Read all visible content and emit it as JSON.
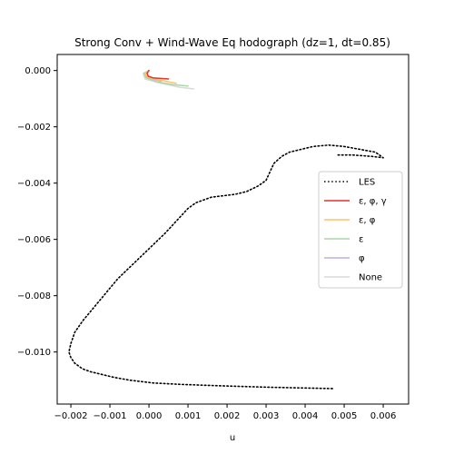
{
  "chart_data": {
    "type": "line",
    "title": "Strong Conv + Wind-Wave Eq hodograph (dz=1, dt=0.85)",
    "xlabel": "u",
    "ylabel": "",
    "xlim": [
      -0.00235,
      0.00665
    ],
    "ylim": [
      -0.01185,
      0.00057
    ],
    "x_ticks": [
      -0.002,
      -0.001,
      0.0,
      0.001,
      0.002,
      0.003,
      0.004,
      0.005,
      0.006
    ],
    "x_tick_labels": [
      "−0.002",
      "−0.001",
      "0.000",
      "0.001",
      "0.002",
      "0.003",
      "0.004",
      "0.005",
      "0.006"
    ],
    "y_ticks": [
      0.0,
      -0.002,
      -0.004,
      -0.006,
      -0.008,
      -0.01
    ],
    "y_tick_labels": [
      "0.000",
      "−0.002",
      "−0.004",
      "−0.006",
      "−0.008",
      "−0.010"
    ],
    "grid": false,
    "legend_position": "center-right",
    "series": [
      {
        "name": "LES",
        "color": "#000000",
        "style": "dotted",
        "x": [
          0.0047,
          0.003,
          0.0018,
          0.0008,
          0.0001,
          -0.0005,
          -0.0009,
          -0.0012,
          -0.0015,
          -0.0017,
          -0.0019,
          -0.002,
          -0.00205,
          -0.002,
          -0.0019,
          -0.0017,
          -0.0014,
          -0.0011,
          -0.0008,
          -0.0005,
          -0.0002,
          0.0001,
          0.0004,
          0.0006,
          0.0008,
          0.001,
          0.0012,
          0.0014,
          0.0016,
          0.0019,
          0.0022,
          0.0025,
          0.0028,
          0.003,
          0.0031,
          0.0032,
          0.0034,
          0.0036,
          0.0039,
          0.0042,
          0.0046,
          0.005,
          0.0054,
          0.0058,
          0.006,
          0.0057,
          0.0052,
          0.0048
        ],
        "y": [
          -0.0113,
          -0.01125,
          -0.0112,
          -0.01115,
          -0.0111,
          -0.011,
          -0.0109,
          -0.0108,
          -0.0107,
          -0.0106,
          -0.0104,
          -0.0102,
          -0.01,
          -0.0097,
          -0.0093,
          -0.0089,
          -0.0084,
          -0.0079,
          -0.0074,
          -0.007,
          -0.0066,
          -0.0062,
          -0.0058,
          -0.0055,
          -0.0052,
          -0.0049,
          -0.0047,
          -0.0046,
          -0.0045,
          -0.00445,
          -0.0044,
          -0.0043,
          -0.0041,
          -0.0039,
          -0.0036,
          -0.0033,
          -0.00305,
          -0.0029,
          -0.0028,
          -0.0027,
          -0.00265,
          -0.0027,
          -0.0028,
          -0.0029,
          -0.0031,
          -0.00305,
          -0.003,
          -0.003
        ]
      },
      {
        "name": "ε, φ, γ",
        "color": "#e8322a",
        "style": "solid",
        "x": [
          0.0,
          -5e-05,
          -2e-05,
          0.0001,
          0.0003,
          0.0005
        ],
        "y": [
          0.0,
          -0.0001,
          -0.0002,
          -0.00026,
          -0.00028,
          -0.0003
        ]
      },
      {
        "name": "ε, φ",
        "color": "#ffc266",
        "style": "solid",
        "x": [
          0.0,
          -0.0001,
          -5e-05,
          0.0002,
          0.0005,
          0.0007
        ],
        "y": [
          0.0,
          -0.0001,
          -0.00022,
          -0.00032,
          -0.0004,
          -0.00045
        ]
      },
      {
        "name": "ε",
        "color": "#a9d6a4",
        "style": "solid",
        "x": [
          0.0,
          -0.00012,
          -8e-05,
          0.0002,
          0.0006,
          0.001
        ],
        "y": [
          0.0,
          -0.0001,
          -0.00025,
          -0.0004,
          -0.0005,
          -0.00055
        ]
      },
      {
        "name": "φ",
        "color": "#b8b2ea",
        "style": "solid",
        "x": [
          0.0,
          -0.0001,
          -6e-05,
          0.00015,
          0.0003
        ],
        "y": [
          0.0,
          -0.0001,
          -0.00022,
          -0.00032,
          -0.00038
        ]
      },
      {
        "name": "None",
        "color": "#d9d9d9",
        "style": "solid",
        "x": [
          0.0,
          -0.00015,
          -0.0001,
          0.0003,
          0.0008,
          0.00115
        ],
        "y": [
          0.0,
          -0.0001,
          -0.0003,
          -0.00045,
          -0.0006,
          -0.00065
        ]
      }
    ]
  }
}
